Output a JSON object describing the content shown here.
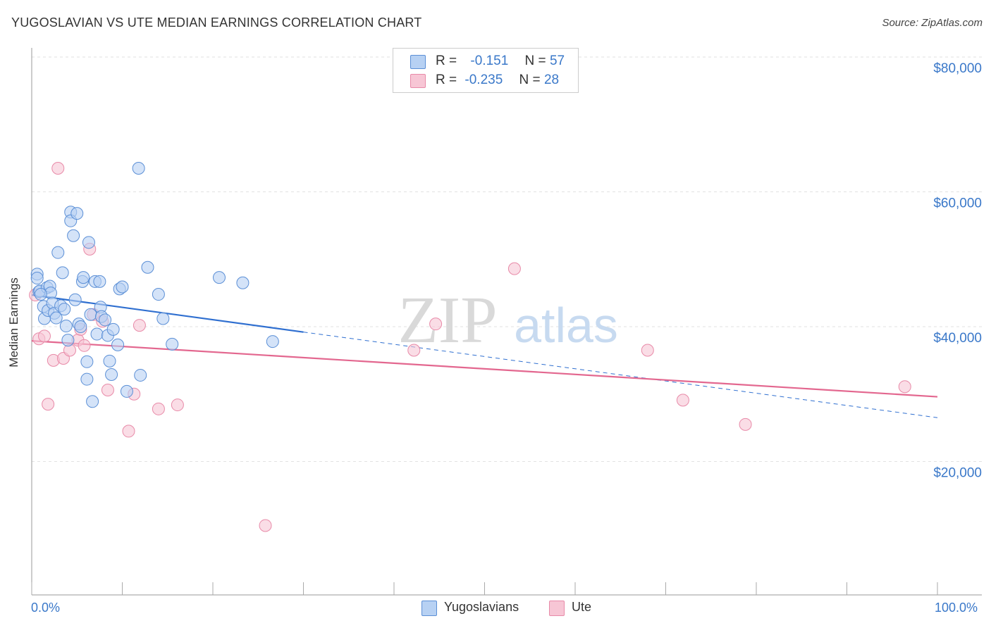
{
  "header": {
    "title": "YUGOSLAVIAN VS UTE MEDIAN EARNINGS CORRELATION CHART",
    "source": "Source: ZipAtlas.com"
  },
  "stats": {
    "row1": {
      "r_label": "R =",
      "r_value": "-0.151",
      "n_label": "N =",
      "n_value": "57"
    },
    "row2": {
      "r_label": "R =",
      "r_value": "-0.235",
      "n_label": "N =",
      "n_value": "28"
    }
  },
  "legend": {
    "series1": "Yugoslavians",
    "series2": "Ute"
  },
  "watermark": {
    "zip": "ZIP",
    "atlas": "atlas"
  },
  "colors": {
    "blue_fill": "#b7d1f3",
    "blue_stroke": "#5b8fd6",
    "blue_line": "#2f6fd0",
    "pink_fill": "#f7c6d5",
    "pink_stroke": "#e88aa8",
    "pink_line": "#e3678f",
    "axis_text": "#3a78c9",
    "grid": "#e2e2e2"
  },
  "chart_data": {
    "type": "scatter",
    "title": "YUGOSLAVIAN VS UTE MEDIAN EARNINGS CORRELATION CHART",
    "xlabel": "",
    "ylabel": "Median Earnings",
    "xlim": [
      0,
      100
    ],
    "ylim": [
      0,
      80000
    ],
    "x_tick_labels": [
      "0.0%",
      "100.0%"
    ],
    "y_ticks": [
      20000,
      40000,
      60000,
      80000
    ],
    "y_tick_labels": [
      "$20,000",
      "$40,000",
      "$60,000",
      "$80,000"
    ],
    "grid": true,
    "legend_position": "bottom-center",
    "series": [
      {
        "name": "Yugoslavians",
        "r": -0.151,
        "n": 57,
        "trend": {
          "x0": 0,
          "y0": 44700,
          "x1": 30,
          "y1": 39200,
          "dashed_to_x": 100,
          "dashed_to_y": 26500
        },
        "points": [
          [
            0.6,
            47800
          ],
          [
            0.6,
            47200
          ],
          [
            0.8,
            45200
          ],
          [
            0.9,
            45300
          ],
          [
            1.3,
            43000
          ],
          [
            1.4,
            41200
          ],
          [
            1.7,
            45800
          ],
          [
            1.8,
            42400
          ],
          [
            2.0,
            46000
          ],
          [
            2.1,
            45000
          ],
          [
            2.3,
            43500
          ],
          [
            2.5,
            42000
          ],
          [
            2.7,
            41300
          ],
          [
            2.9,
            51000
          ],
          [
            3.2,
            43100
          ],
          [
            3.4,
            48000
          ],
          [
            3.6,
            42600
          ],
          [
            3.8,
            40100
          ],
          [
            4.0,
            38000
          ],
          [
            4.3,
            57000
          ],
          [
            4.3,
            55700
          ],
          [
            4.6,
            53500
          ],
          [
            4.8,
            44000
          ],
          [
            5.0,
            56800
          ],
          [
            5.2,
            40400
          ],
          [
            5.4,
            40000
          ],
          [
            5.6,
            46700
          ],
          [
            5.7,
            47300
          ],
          [
            6.1,
            34800
          ],
          [
            6.1,
            32200
          ],
          [
            6.3,
            52500
          ],
          [
            6.5,
            41800
          ],
          [
            6.7,
            28900
          ],
          [
            7.0,
            46700
          ],
          [
            7.2,
            38900
          ],
          [
            7.5,
            46700
          ],
          [
            7.6,
            42900
          ],
          [
            7.7,
            41500
          ],
          [
            8.1,
            41000
          ],
          [
            8.4,
            38700
          ],
          [
            8.6,
            34900
          ],
          [
            8.8,
            32900
          ],
          [
            9.0,
            39600
          ],
          [
            9.5,
            37300
          ],
          [
            9.7,
            45600
          ],
          [
            10.0,
            45900
          ],
          [
            10.5,
            30400
          ],
          [
            11.8,
            63500
          ],
          [
            12.0,
            32800
          ],
          [
            12.8,
            48800
          ],
          [
            14.0,
            44800
          ],
          [
            14.5,
            41200
          ],
          [
            15.5,
            37400
          ],
          [
            20.7,
            47300
          ],
          [
            23.3,
            46500
          ],
          [
            26.6,
            37800
          ],
          [
            1.0,
            44800
          ]
        ]
      },
      {
        "name": "Ute",
        "r": -0.235,
        "n": 28,
        "trend": {
          "x0": 0,
          "y0": 37900,
          "x1": 100,
          "y1": 29600
        },
        "points": [
          [
            0.4,
            44700
          ],
          [
            0.8,
            38200
          ],
          [
            1.4,
            38600
          ],
          [
            1.8,
            28500
          ],
          [
            2.4,
            35000
          ],
          [
            2.9,
            63500
          ],
          [
            3.5,
            35300
          ],
          [
            4.2,
            36500
          ],
          [
            5.1,
            38000
          ],
          [
            5.4,
            39600
          ],
          [
            5.8,
            37200
          ],
          [
            6.4,
            51500
          ],
          [
            6.8,
            41800
          ],
          [
            7.8,
            40800
          ],
          [
            8.4,
            30600
          ],
          [
            10.7,
            24500
          ],
          [
            11.3,
            30000
          ],
          [
            11.9,
            40200
          ],
          [
            14.0,
            27800
          ],
          [
            16.1,
            28400
          ],
          [
            25.8,
            10500
          ],
          [
            44.6,
            40400
          ],
          [
            42.2,
            36500
          ],
          [
            53.3,
            48600
          ],
          [
            68.0,
            36500
          ],
          [
            71.9,
            29100
          ],
          [
            78.8,
            25500
          ],
          [
            96.4,
            31100
          ]
        ]
      }
    ]
  }
}
